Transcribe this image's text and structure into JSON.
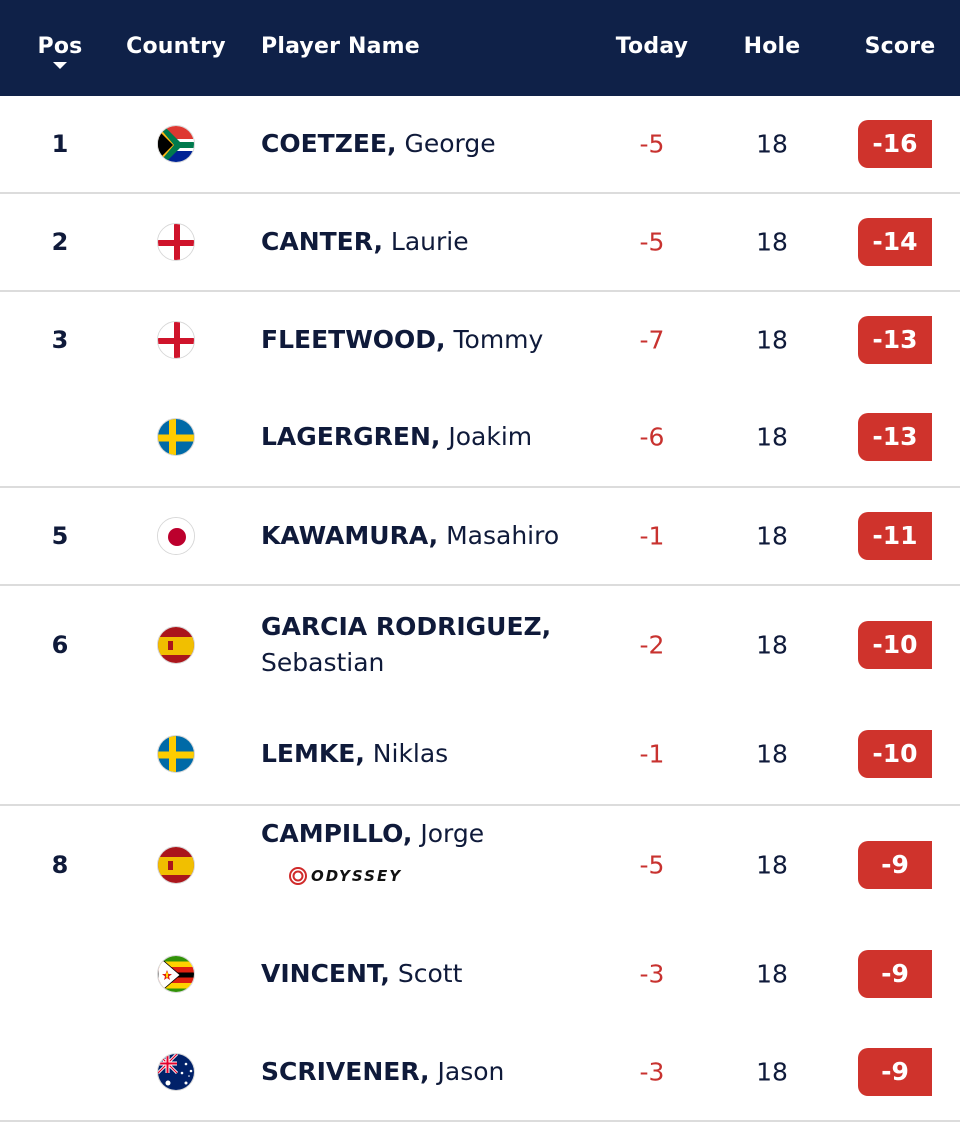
{
  "header": {
    "pos": "Pos",
    "country": "Country",
    "player_name": "Player Name",
    "today": "Today",
    "hole": "Hole",
    "score": "Score"
  },
  "colors": {
    "header_bg": "#0f2148",
    "score_badge": "#cf332c",
    "today_text": "#c8322f"
  },
  "rows": [
    {
      "pos": "1",
      "flag": "south-africa-flag-icon",
      "last": "COETZEE,",
      "first": "George",
      "today": "-5",
      "hole": "18",
      "score": "-16"
    },
    {
      "pos": "2",
      "flag": "england-flag-icon",
      "last": "CANTER,",
      "first": "Laurie",
      "today": "-5",
      "hole": "18",
      "score": "-14"
    },
    {
      "pos": "3",
      "flag": "england-flag-icon",
      "last": "FLEETWOOD,",
      "first": "Tommy",
      "today": "-7",
      "hole": "18",
      "score": "-13"
    },
    {
      "pos": "",
      "flag": "sweden-flag-icon",
      "last": "LAGERGREN,",
      "first": "Joakim",
      "today": "-6",
      "hole": "18",
      "score": "-13"
    },
    {
      "pos": "5",
      "flag": "japan-flag-icon",
      "last": "KAWAMURA,",
      "first": "Masahiro",
      "today": "-1",
      "hole": "18",
      "score": "-11"
    },
    {
      "pos": "6",
      "flag": "spain-flag-icon",
      "last": "GARCIA RODRIGUEZ,",
      "first": "Sebastian",
      "today": "-2",
      "hole": "18",
      "score": "-10"
    },
    {
      "pos": "",
      "flag": "sweden-flag-icon",
      "last": "LEMKE,",
      "first": "Niklas",
      "today": "-1",
      "hole": "18",
      "score": "-10"
    },
    {
      "pos": "8",
      "flag": "spain-flag-icon",
      "last": "CAMPILLO,",
      "first": "Jorge",
      "today": "-5",
      "hole": "18",
      "score": "-9",
      "sponsor": "ODYSSEY"
    },
    {
      "pos": "",
      "flag": "zimbabwe-flag-icon",
      "last": "VINCENT,",
      "first": "Scott",
      "today": "-3",
      "hole": "18",
      "score": "-9"
    },
    {
      "pos": "",
      "flag": "australia-flag-icon",
      "last": "SCRIVENER,",
      "first": "Jason",
      "today": "-3",
      "hole": "18",
      "score": "-9"
    }
  ]
}
